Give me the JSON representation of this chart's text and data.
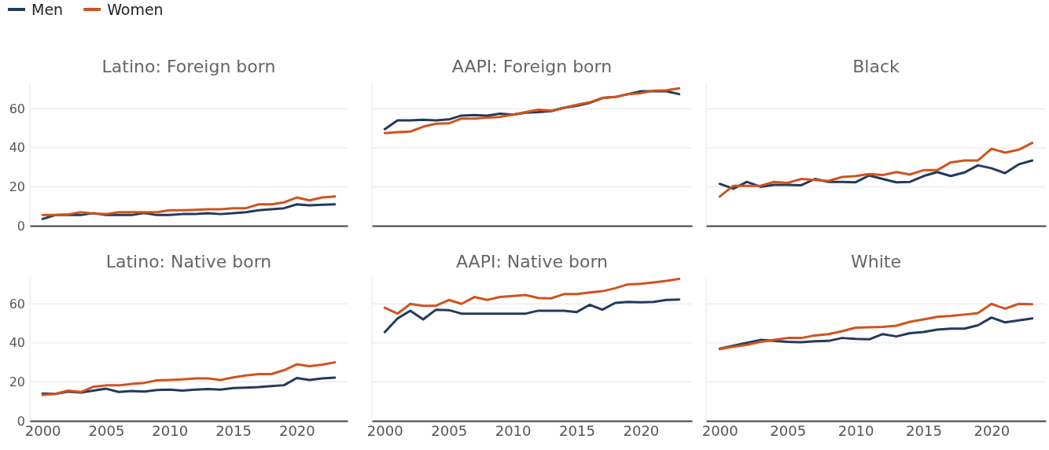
{
  "chart_data": [
    {
      "type": "line",
      "title": "Latino: Foreign born",
      "x": [
        2000,
        2001,
        2002,
        2003,
        2004,
        2005,
        2006,
        2007,
        2008,
        2009,
        2010,
        2011,
        2012,
        2013,
        2014,
        2015,
        2016,
        2017,
        2018,
        2019,
        2020,
        2021,
        2022,
        2023
      ],
      "xlim": [
        1999,
        2024
      ],
      "ylim": [
        0,
        73
      ],
      "xticks": [
        2000,
        2005,
        2010,
        2015,
        2020
      ],
      "yticks": [
        0,
        20,
        40,
        60
      ],
      "grid": "y",
      "legend": "top left",
      "tick_labels": "y",
      "series": [
        {
          "name": "Men",
          "color": "#233a5c",
          "values": [
            3.5,
            5.5,
            5.5,
            5.5,
            6.5,
            5.5,
            5.5,
            5.5,
            6.5,
            5.5,
            5.5,
            6,
            6,
            6.5,
            6,
            6.5,
            7,
            8,
            8.5,
            9,
            11,
            10.5,
            10.8,
            11
          ]
        },
        {
          "name": "Women",
          "color": "#d0531f",
          "values": [
            5.5,
            5.5,
            5.8,
            7,
            6.3,
            6,
            7,
            7,
            7,
            7,
            8,
            8,
            8.2,
            8.5,
            8.5,
            9,
            9,
            11,
            11,
            12,
            14.5,
            13,
            14.5,
            15
          ]
        }
      ]
    },
    {
      "type": "line",
      "title": "AAPI: Foreign born",
      "x": [
        2000,
        2001,
        2002,
        2003,
        2004,
        2005,
        2006,
        2007,
        2008,
        2009,
        2010,
        2011,
        2012,
        2013,
        2014,
        2015,
        2016,
        2017,
        2018,
        2019,
        2020,
        2021,
        2022,
        2023
      ],
      "xlim": [
        1999,
        2024
      ],
      "ylim": [
        0,
        73
      ],
      "xticks": [
        2000,
        2005,
        2010,
        2015,
        2020
      ],
      "yticks": [
        0,
        20,
        40,
        60
      ],
      "grid": "y",
      "tick_labels": false,
      "series": [
        {
          "color": "#233a5c",
          "values": [
            49.5,
            54,
            54,
            54.3,
            54,
            54.5,
            56.5,
            56.8,
            56.5,
            57.5,
            57,
            58,
            58.3,
            58.8,
            60.5,
            61.5,
            63,
            65.5,
            66,
            67.5,
            69,
            69,
            69,
            67.5
          ]
        },
        {
          "color": "#d0531f",
          "values": [
            47.5,
            48,
            48.3,
            50.8,
            52.3,
            52.5,
            55,
            55,
            55.5,
            55.8,
            57,
            58.3,
            59.5,
            59,
            60.5,
            62,
            63.3,
            65.5,
            66,
            67.5,
            68,
            69.3,
            69.5,
            70.5
          ]
        }
      ]
    },
    {
      "type": "line",
      "title": "Black",
      "x": [
        2000,
        2001,
        2002,
        2003,
        2004,
        2005,
        2006,
        2007,
        2008,
        2009,
        2010,
        2011,
        2012,
        2013,
        2014,
        2015,
        2016,
        2017,
        2018,
        2019,
        2020,
        2021,
        2022,
        2023
      ],
      "xlim": [
        1999,
        2024
      ],
      "ylim": [
        0,
        73
      ],
      "xticks": [
        2000,
        2005,
        2010,
        2015,
        2020
      ],
      "yticks": [
        0,
        20,
        40,
        60
      ],
      "grid": "y",
      "tick_labels": false,
      "series": [
        {
          "color": "#233a5c",
          "values": [
            21.5,
            19,
            22.5,
            20,
            21,
            21,
            20.8,
            24,
            22.5,
            22.5,
            22.3,
            25.8,
            24,
            22.3,
            22.5,
            25.5,
            27.5,
            25.5,
            27.3,
            31,
            29.5,
            27,
            31.5,
            33.5
          ]
        },
        {
          "color": "#d0531f",
          "values": [
            15,
            20.5,
            20.5,
            20.5,
            22.5,
            22,
            24,
            23.5,
            23,
            25,
            25.5,
            26.5,
            26,
            27.5,
            26.3,
            28.5,
            28.5,
            32.5,
            33.5,
            33.5,
            39.5,
            37.5,
            39,
            42.5
          ]
        }
      ]
    },
    {
      "type": "line",
      "title": "Latino: Native born",
      "x": [
        2000,
        2001,
        2002,
        2003,
        2004,
        2005,
        2006,
        2007,
        2008,
        2009,
        2010,
        2011,
        2012,
        2013,
        2014,
        2015,
        2016,
        2017,
        2018,
        2019,
        2020,
        2021,
        2022,
        2023
      ],
      "xlim": [
        1999,
        2024
      ],
      "ylim": [
        0,
        73
      ],
      "xticks": [
        2000,
        2005,
        2010,
        2015,
        2020
      ],
      "yticks": [
        0,
        20,
        40,
        60
      ],
      "grid": "y",
      "series": [
        {
          "color": "#233a5c",
          "values": [
            14,
            13.8,
            15,
            14.5,
            15.5,
            16.5,
            14.8,
            15.3,
            15,
            15.8,
            16,
            15.5,
            16,
            16.3,
            16,
            16.8,
            17,
            17.3,
            17.8,
            18.3,
            22,
            21,
            21.8,
            22.2
          ]
        },
        {
          "color": "#d0531f",
          "values": [
            13.3,
            13.8,
            15.5,
            14.8,
            17.5,
            18.2,
            18.2,
            19,
            19.5,
            20.8,
            21,
            21.3,
            21.8,
            21.8,
            21,
            22.3,
            23.3,
            24,
            24,
            26,
            29,
            28,
            28.8,
            30
          ]
        }
      ]
    },
    {
      "type": "line",
      "title": "AAPI: Native born",
      "x": [
        2000,
        2001,
        2002,
        2003,
        2004,
        2005,
        2006,
        2007,
        2008,
        2009,
        2010,
        2011,
        2012,
        2013,
        2014,
        2015,
        2016,
        2017,
        2018,
        2019,
        2020,
        2021,
        2022,
        2023
      ],
      "xlim": [
        1999,
        2024
      ],
      "ylim": [
        0,
        73
      ],
      "xticks": [
        2000,
        2005,
        2010,
        2015,
        2020
      ],
      "yticks": [
        0,
        20,
        40,
        60
      ],
      "grid": "y",
      "tick_labels": "x",
      "series": [
        {
          "color": "#233a5c",
          "values": [
            45.5,
            52.5,
            56.5,
            52,
            57,
            56.8,
            55,
            55,
            55,
            55,
            55,
            55,
            56.5,
            56.5,
            56.5,
            55.8,
            59.5,
            57,
            60.5,
            61,
            60.8,
            61,
            62,
            62.2
          ]
        },
        {
          "color": "#d0531f",
          "values": [
            58,
            55,
            60,
            59,
            59,
            62,
            60,
            63.5,
            62,
            63.5,
            64,
            64.5,
            63,
            62.8,
            65,
            65,
            65.8,
            66.5,
            68,
            70,
            70.3,
            71,
            71.8,
            72.8
          ]
        }
      ]
    },
    {
      "type": "line",
      "title": "White",
      "x": [
        2000,
        2001,
        2002,
        2003,
        2004,
        2005,
        2006,
        2007,
        2008,
        2009,
        2010,
        2011,
        2012,
        2013,
        2014,
        2015,
        2016,
        2017,
        2018,
        2019,
        2020,
        2021,
        2022,
        2023
      ],
      "xlim": [
        1999,
        2024
      ],
      "ylim": [
        0,
        73
      ],
      "xticks": [
        2000,
        2005,
        2010,
        2015,
        2020
      ],
      "yticks": [
        0,
        20,
        40,
        60
      ],
      "grid": "y",
      "tick_labels": "x",
      "series": [
        {
          "color": "#233a5c",
          "values": [
            37,
            38.5,
            40,
            41.5,
            41,
            40.5,
            40.3,
            40.8,
            41,
            42.5,
            42,
            41.8,
            44.5,
            43.3,
            45,
            45.6,
            46.8,
            47.3,
            47.3,
            49,
            53,
            50.5,
            51.5,
            52.5
          ]
        },
        {
          "color": "#d0531f",
          "values": [
            36.8,
            38,
            39,
            40.5,
            41.5,
            42.5,
            42.5,
            43.8,
            44.5,
            46,
            47.8,
            48,
            48.2,
            48.8,
            50.8,
            52,
            53.3,
            53.8,
            54.5,
            55.3,
            60,
            57.5,
            60,
            59.8
          ]
        }
      ]
    }
  ]
}
